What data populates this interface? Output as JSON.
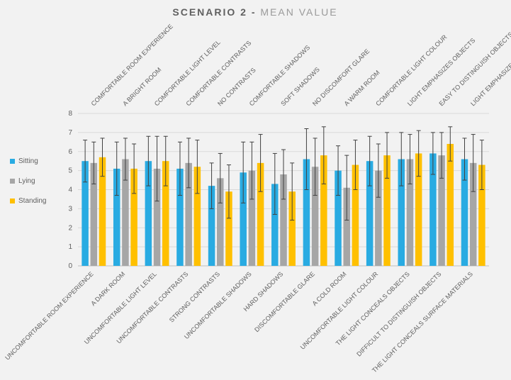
{
  "chart": {
    "type": "bar",
    "title_bold": "SCENARIO 2 - ",
    "title_reg": "MEAN VALUE",
    "title_fontsize": 14,
    "background_color": "#f2f2f2",
    "grid_color": "#d9d9d9",
    "axis_color": "#bfbfbf",
    "ylim": [
      0,
      8
    ],
    "ytick_step": 1,
    "series": [
      {
        "name": "Sitting",
        "color": "#29abe2"
      },
      {
        "name": "Lying",
        "color": "#a6a6a6"
      },
      {
        "name": "Standing",
        "color": "#ffc000"
      }
    ],
    "error_bar_color": "#404040",
    "bar_group_width": 0.82,
    "bar_width": 0.26,
    "top_labels": [
      "COMFORTABLE ROOM EXPERIENCE",
      "A BRIGHT ROOM",
      "COMFORTABLE LIGHT LEVEL",
      "COMFORTABLE CONTRASTS",
      "NO CONTRASTS",
      "COMFORTABLE SHADOWS",
      "SOFT SHADOWS",
      "NO DISCOMFORT GLARE",
      "A WARM ROOM",
      "COMFORTABLE LIGHT COLOUR",
      "LIGHT EMPHASIZES OBJECTS",
      "EASY TO DISTINGUISH OBJECTS",
      "LIGHT EMPHASIZES SURFACES"
    ],
    "bottom_labels": [
      "UNCOMFORTABLE ROOM EXPERIENCE",
      "A DARK ROOM",
      "UNCOMFORTABLE LIGHT LEVEL",
      "UNCOMFORTABLE CONTRASTS",
      "STRONG CONTRASTS",
      "UNCOMFORTABLE SHADOWS",
      "HARD SHADOWS",
      "DISCOMFORTABLE GLARE",
      "A COLD ROOM",
      "UNCOMFORTABLE LIGHT COLOUR",
      "THE LIGHT CONCEALS OBJECTS",
      "DIFFICULT TO DISTINGUISH OBJECTS",
      "THE LIGHT CONCEALS SURFACE MATERIALS"
    ],
    "values": {
      "Sitting": [
        5.5,
        5.1,
        5.5,
        5.1,
        4.2,
        4.9,
        4.3,
        5.6,
        5.0,
        5.5,
        5.6,
        5.9,
        5.6
      ],
      "Lying": [
        5.4,
        5.6,
        5.1,
        5.4,
        4.6,
        5.0,
        4.8,
        5.2,
        4.1,
        5.0,
        5.6,
        5.8,
        5.4
      ],
      "Standing": [
        5.7,
        5.1,
        5.5,
        5.2,
        3.9,
        5.4,
        3.9,
        5.8,
        5.3,
        5.8,
        5.9,
        6.4,
        5.3
      ]
    },
    "errors": {
      "Sitting": [
        1.1,
        1.4,
        1.3,
        1.4,
        1.2,
        1.6,
        1.6,
        1.6,
        1.3,
        1.3,
        1.4,
        1.1,
        1.1
      ],
      "Lying": [
        1.1,
        1.1,
        1.7,
        1.3,
        1.3,
        1.5,
        1.3,
        1.5,
        1.7,
        1.4,
        1.3,
        1.2,
        1.5
      ],
      "Standing": [
        1.0,
        1.3,
        1.3,
        1.4,
        1.4,
        1.5,
        1.5,
        1.5,
        1.3,
        1.2,
        1.2,
        0.9,
        1.3
      ]
    }
  }
}
